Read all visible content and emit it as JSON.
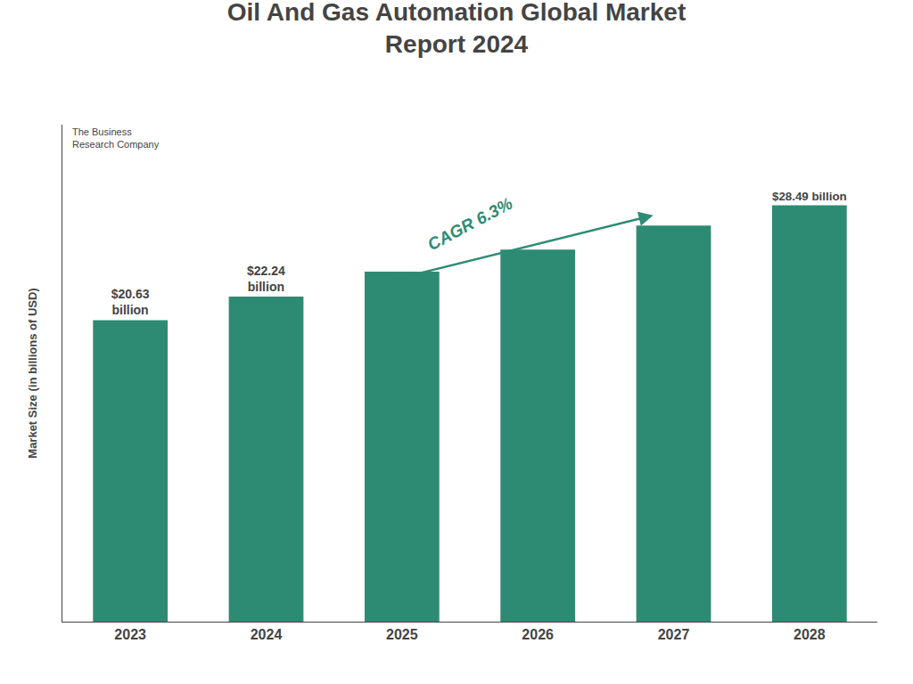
{
  "chart_data": {
    "type": "bar",
    "title": "Oil And Gas Automation Global Market\nReport 2024",
    "categories": [
      "2023",
      "2024",
      "2025",
      "2026",
      "2027",
      "2028"
    ],
    "values": [
      20.63,
      22.24,
      23.95,
      25.46,
      27.1,
      28.49
    ],
    "color": "#2e8b73",
    "ylabel": "Market Size (in billions of USD)",
    "ylim": [
      0,
      34
    ],
    "yticks": [],
    "grid": false,
    "tick_labels": "x",
    "data_labels": true,
    "value_labels": [
      "$20.63\nbillion",
      "$22.24\nbillion",
      null,
      null,
      null,
      "$28.49 billion"
    ],
    "annotations": [
      "CAGR 6.3%",
      "The Business\nResearch Company"
    ]
  }
}
